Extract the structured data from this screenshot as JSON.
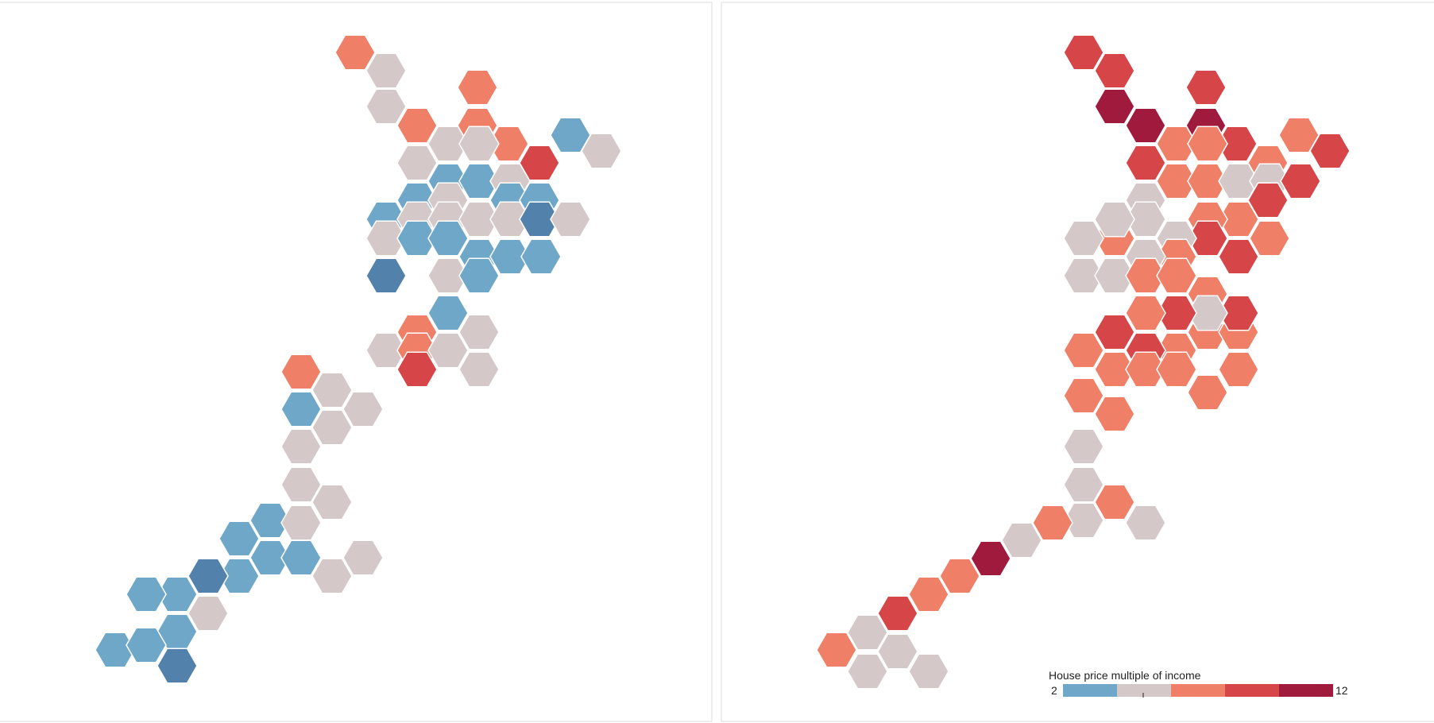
{
  "legend": {
    "title": "House price multiple of income",
    "min_label": "2",
    "max_label": "12"
  },
  "palette": {
    "blue-dark": "#5281ab",
    "blue": "#6fa7c9",
    "grey": "#d4c8c8",
    "salmon": "#ef7f67",
    "red": "#d64547",
    "crimson": "#a01a3e"
  },
  "legend_bins": [
    "blue",
    "grey",
    "salmon",
    "red",
    "crimson"
  ],
  "maps": [
    {
      "name": "left-hex-map",
      "tiles": [
        "salmon",
        "grey",
        "grey",
        "salmon",
        "salmon",
        "salmon",
        "salmon",
        "red",
        "blue",
        "grey",
        "grey",
        "grey",
        "grey",
        "blue",
        "blue",
        "grey",
        "blue",
        "grey",
        "blue",
        "blue",
        "blue",
        "grey",
        "grey",
        "grey",
        "grey",
        "blue-dark",
        "grey",
        "grey",
        "blue",
        "blue",
        "blue",
        "blue",
        "blue",
        "blue-dark",
        "grey",
        "blue",
        "blue",
        "salmon",
        "grey",
        "salmon",
        "grey",
        "red",
        "grey",
        "grey",
        "salmon",
        "grey",
        "blue",
        "grey",
        "grey",
        "grey",
        "grey",
        "grey",
        "blue",
        "blue",
        "grey",
        "blue",
        "blue",
        "grey",
        "grey",
        "blue",
        "blue-dark",
        "blue",
        "blue",
        "grey",
        "blue",
        "blue",
        "blue",
        "blue-dark"
      ]
    },
    {
      "name": "right-hex-map",
      "tiles": [
        "red",
        "red",
        "crimson",
        "crimson",
        "red",
        "crimson",
        "red",
        "salmon",
        "salmon",
        "red",
        "red",
        "salmon",
        "salmon",
        "salmon",
        "grey",
        "salmon",
        "grey",
        "grey",
        "red",
        "red",
        "salmon",
        "salmon",
        "red",
        "grey",
        "salmon",
        "grey",
        "grey",
        "grey",
        "red",
        "salmon",
        "salmon",
        "grey",
        "grey",
        "grey",
        "salmon",
        "salmon",
        "salmon",
        "salmon",
        "salmon",
        "salmon",
        "red",
        "salmon",
        "salmon",
        "salmon",
        "salmon",
        "salmon",
        "salmon",
        "red",
        "grey",
        "red",
        "salmon",
        "red",
        "salmon",
        "salmon",
        "salmon",
        "grey",
        "grey",
        "salmon",
        "grey",
        "grey",
        "salmon",
        "grey",
        "crimson",
        "salmon",
        "salmon",
        "red",
        "grey",
        "salmon",
        "grey",
        "grey",
        "grey"
      ]
    }
  ]
}
